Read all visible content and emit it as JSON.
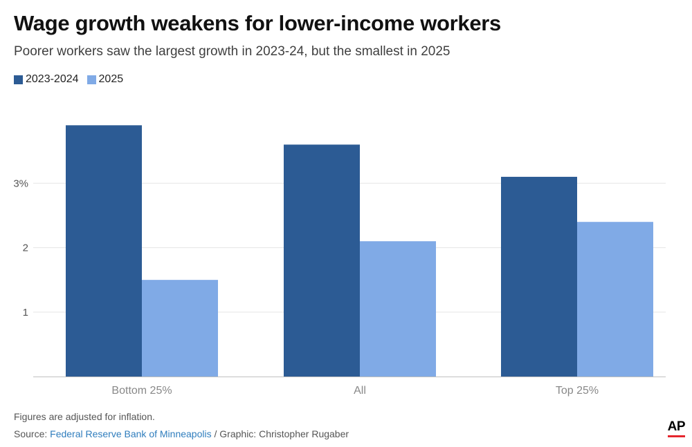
{
  "title": "Wage growth weakens for lower-income workers",
  "subtitle": "Poorer workers saw the largest growth in 2023-24, but the smallest in 2025",
  "colors": {
    "series1": "#2c5b94",
    "series2": "#80aae6",
    "gridline": "#e6e6e6",
    "axis": "#bfbfbf",
    "link": "#2f7dbd",
    "ap_red": "#e5262d"
  },
  "chart_data": {
    "type": "bar",
    "title": "Wage growth weakens for lower-income workers",
    "subtitle": "Poorer workers saw the largest growth in 2023-24, but the smallest in 2025",
    "categories": [
      "Bottom 25%",
      "All",
      "Top 25%"
    ],
    "series": [
      {
        "name": "2023-2024",
        "values": [
          3.9,
          3.6,
          3.1
        ]
      },
      {
        "name": "2025",
        "values": [
          1.5,
          2.1,
          2.4
        ]
      }
    ],
    "y_ticks": [
      {
        "value": 1,
        "label": "1"
      },
      {
        "value": 2,
        "label": "2"
      },
      {
        "value": 3,
        "label": "3%"
      }
    ],
    "xlabel": "",
    "ylabel": "",
    "ylim": [
      0,
      4
    ],
    "grid": true,
    "legend": "top-left"
  },
  "footer": {
    "note": "Figures are adjusted for inflation.",
    "source_prefix": "Source: ",
    "source_link": "Federal Reserve Bank of Minneapolis",
    "source_suffix": " / Graphic: Christopher Rugaber",
    "logo": "AP"
  }
}
